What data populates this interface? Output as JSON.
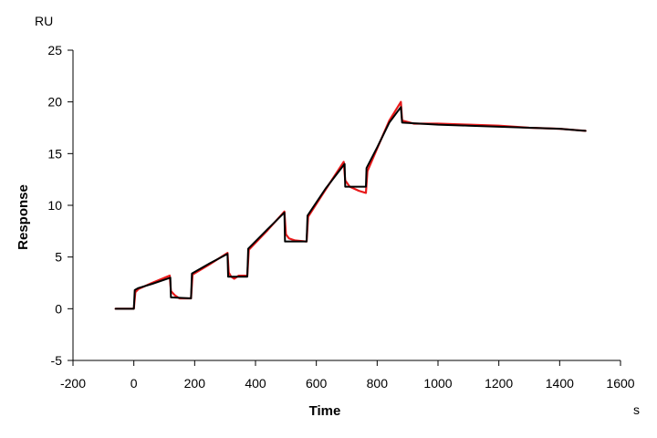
{
  "chart_data": {
    "type": "line",
    "xlabel": "Time",
    "ylabel": "Response",
    "x_unit": "s",
    "y_unit": "RU",
    "xlim": [
      -200,
      1600
    ],
    "ylim": [
      -5,
      25
    ],
    "x_ticks": [
      -200,
      0,
      200,
      400,
      600,
      800,
      1000,
      1200,
      1400,
      1600
    ],
    "y_ticks": [
      -5,
      0,
      5,
      10,
      15,
      20,
      25
    ],
    "grid": false,
    "legend": "none",
    "series": [
      {
        "color": "#e8191a",
        "points": [
          [
            -60,
            0.0
          ],
          [
            0,
            0.0
          ],
          [
            5,
            1.6
          ],
          [
            15,
            1.9
          ],
          [
            60,
            2.5
          ],
          [
            118,
            3.2
          ],
          [
            122,
            1.7
          ],
          [
            135,
            1.3
          ],
          [
            150,
            1.0
          ],
          [
            188,
            1.0
          ],
          [
            193,
            3.3
          ],
          [
            250,
            4.3
          ],
          [
            308,
            5.4
          ],
          [
            312,
            3.5
          ],
          [
            320,
            3.1
          ],
          [
            330,
            2.9
          ],
          [
            345,
            3.2
          ],
          [
            373,
            3.2
          ],
          [
            378,
            5.7
          ],
          [
            440,
            7.6
          ],
          [
            495,
            9.4
          ],
          [
            500,
            7.2
          ],
          [
            510,
            6.8
          ],
          [
            530,
            6.6
          ],
          [
            568,
            6.5
          ],
          [
            573,
            8.9
          ],
          [
            630,
            11.5
          ],
          [
            690,
            14.2
          ],
          [
            695,
            12.4
          ],
          [
            710,
            11.8
          ],
          [
            740,
            11.4
          ],
          [
            763,
            11.2
          ],
          [
            768,
            13.3
          ],
          [
            800,
            15.5
          ],
          [
            840,
            18.2
          ],
          [
            878,
            20.0
          ],
          [
            882,
            18.2
          ],
          [
            920,
            17.9
          ],
          [
            1000,
            17.9
          ],
          [
            1100,
            17.8
          ],
          [
            1200,
            17.7
          ],
          [
            1300,
            17.5
          ],
          [
            1400,
            17.4
          ],
          [
            1485,
            17.2
          ]
        ]
      },
      {
        "color": "#000000",
        "points": [
          [
            -60,
            0.0
          ],
          [
            0,
            0.0
          ],
          [
            3,
            1.8
          ],
          [
            15,
            2.0
          ],
          [
            60,
            2.4
          ],
          [
            120,
            3.0
          ],
          [
            122,
            1.1
          ],
          [
            188,
            1.0
          ],
          [
            191,
            3.4
          ],
          [
            250,
            4.4
          ],
          [
            308,
            5.3
          ],
          [
            310,
            3.1
          ],
          [
            373,
            3.1
          ],
          [
            376,
            5.8
          ],
          [
            440,
            7.7
          ],
          [
            495,
            9.3
          ],
          [
            497,
            6.5
          ],
          [
            568,
            6.5
          ],
          [
            571,
            9.0
          ],
          [
            630,
            11.6
          ],
          [
            693,
            14.0
          ],
          [
            695,
            11.8
          ],
          [
            763,
            11.8
          ],
          [
            765,
            13.6
          ],
          [
            800,
            15.6
          ],
          [
            840,
            18.0
          ],
          [
            878,
            19.5
          ],
          [
            882,
            18.0
          ],
          [
            1000,
            17.8
          ],
          [
            1100,
            17.7
          ],
          [
            1200,
            17.6
          ],
          [
            1300,
            17.5
          ],
          [
            1400,
            17.4
          ],
          [
            1485,
            17.2
          ]
        ]
      }
    ]
  }
}
